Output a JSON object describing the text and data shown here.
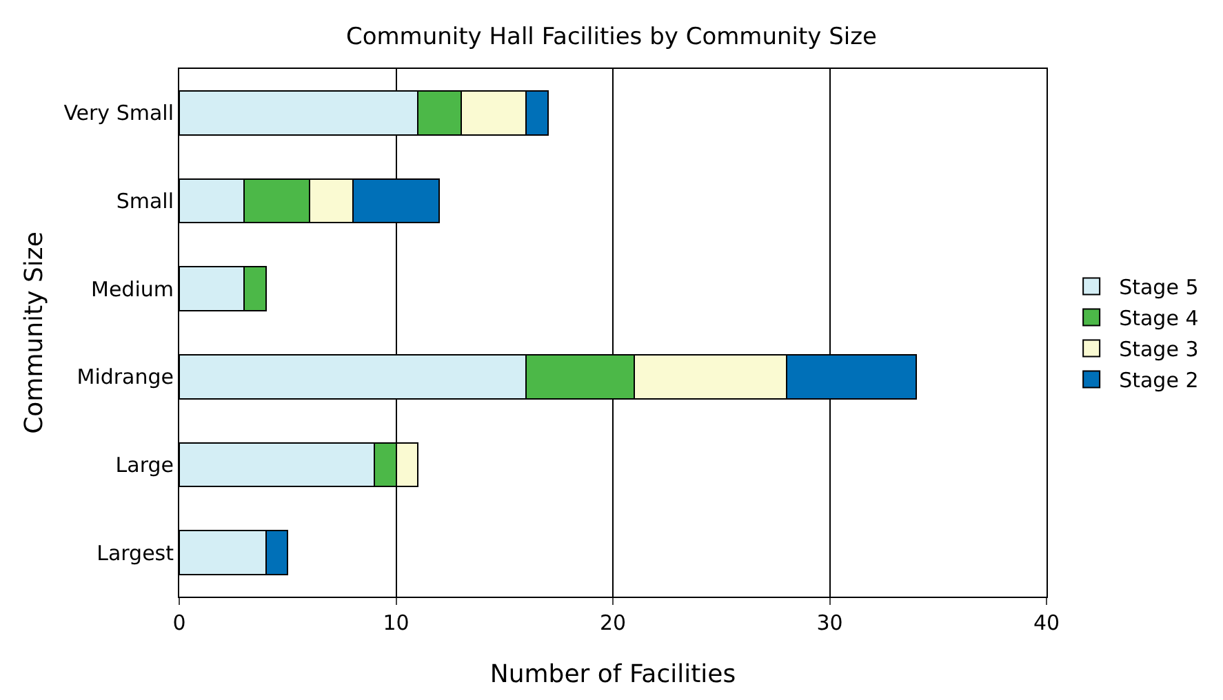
{
  "chart_data": {
    "type": "bar",
    "title": "Community Hall Facilities by Community Size",
    "xlabel": "Number of Facilities",
    "ylabel": "Community Size",
    "orientation": "horizontal",
    "stacked": true,
    "categories": [
      "Very Small",
      "Small",
      "Medium",
      "Midrange",
      "Large",
      "Largest"
    ],
    "series": [
      {
        "name": "Stage 5",
        "color": "#d4eef5",
        "values": [
          11,
          3,
          3,
          16,
          9,
          4
        ]
      },
      {
        "name": "Stage 4",
        "color": "#4cb848",
        "values": [
          2,
          3,
          1,
          5,
          1,
          0
        ]
      },
      {
        "name": "Stage 3",
        "color": "#fafad2",
        "values": [
          3,
          2,
          0,
          7,
          1,
          0
        ]
      },
      {
        "name": "Stage 2",
        "color": "#0070b8",
        "values": [
          1,
          4,
          0,
          6,
          0,
          1
        ]
      }
    ],
    "xlim": [
      0,
      40
    ],
    "xticks": [
      0,
      10,
      20,
      30,
      40
    ],
    "grid": "x",
    "legend": "right"
  }
}
